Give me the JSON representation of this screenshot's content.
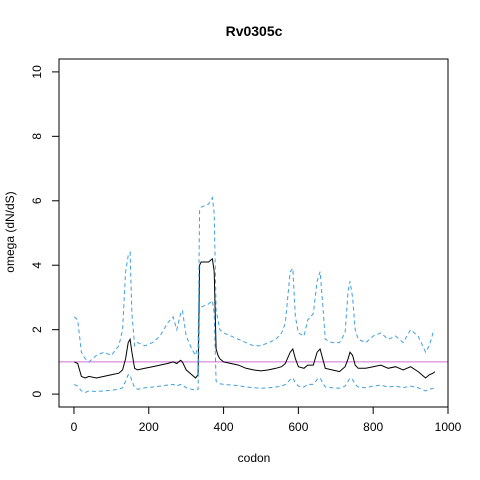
{
  "chart_data": {
    "type": "line",
    "title": "Rv0305c",
    "xlabel": "codon",
    "ylabel": "omega (dN/dS)",
    "xlim": [
      -40,
      1000
    ],
    "ylim": [
      -0.4,
      10.4
    ],
    "x_ticks": [
      "0",
      "200",
      "400",
      "600",
      "800",
      "1000"
    ],
    "y_ticks": [
      "0",
      "2",
      "4",
      "6",
      "8",
      "10"
    ],
    "reference_line": {
      "y": 1,
      "color": "#d070d0"
    },
    "series": [
      {
        "style": "solid",
        "color": "#000000",
        "x": [
          1,
          10,
          20,
          30,
          40,
          60,
          80,
          100,
          120,
          130,
          138,
          145,
          150,
          155,
          162,
          170,
          190,
          210,
          230,
          250,
          265,
          275,
          285,
          290,
          300,
          315,
          325,
          332,
          336,
          340,
          360,
          370,
          375,
          380,
          385,
          390,
          400,
          420,
          440,
          460,
          480,
          500,
          520,
          540,
          555,
          565,
          578,
          585,
          592,
          600,
          615,
          625,
          640,
          650,
          658,
          665,
          672,
          690,
          710,
          725,
          733,
          738,
          745,
          752,
          760,
          780,
          800,
          820,
          840,
          860,
          880,
          900,
          920,
          940,
          950,
          960,
          965
        ],
        "y": [
          1.0,
          0.95,
          0.55,
          0.5,
          0.55,
          0.5,
          0.55,
          0.6,
          0.65,
          0.75,
          1.1,
          1.6,
          1.7,
          1.3,
          0.8,
          0.75,
          0.8,
          0.85,
          0.9,
          0.95,
          1.0,
          0.95,
          1.05,
          1.0,
          0.75,
          0.6,
          0.5,
          0.6,
          4.0,
          4.1,
          4.1,
          4.2,
          3.8,
          1.4,
          1.2,
          1.1,
          1.0,
          0.95,
          0.9,
          0.8,
          0.75,
          0.72,
          0.75,
          0.8,
          0.85,
          0.95,
          1.3,
          1.4,
          1.1,
          0.85,
          0.8,
          0.9,
          0.9,
          1.3,
          1.4,
          1.1,
          0.8,
          0.75,
          0.7,
          0.85,
          1.1,
          1.3,
          1.2,
          0.9,
          0.8,
          0.8,
          0.85,
          0.9,
          0.8,
          0.85,
          0.75,
          0.85,
          0.7,
          0.5,
          0.6,
          0.65,
          0.7
        ]
      },
      {
        "style": "dashed",
        "color": "#3fa0db",
        "x": [
          1,
          10,
          20,
          30,
          40,
          60,
          80,
          100,
          120,
          130,
          138,
          145,
          150,
          155,
          162,
          170,
          190,
          210,
          230,
          250,
          265,
          275,
          285,
          290,
          300,
          315,
          325,
          332,
          336,
          340,
          360,
          370,
          375,
          380,
          385,
          390,
          400,
          420,
          440,
          460,
          480,
          500,
          520,
          540,
          555,
          565,
          578,
          585,
          592,
          600,
          615,
          625,
          640,
          650,
          658,
          665,
          672,
          690,
          710,
          725,
          733,
          738,
          745,
          752,
          760,
          780,
          800,
          820,
          840,
          860,
          880,
          900,
          920,
          940,
          950,
          960,
          965
        ],
        "y": [
          2.4,
          2.3,
          1.3,
          1.1,
          1.0,
          1.2,
          1.3,
          1.2,
          1.5,
          2.0,
          3.8,
          4.3,
          4.4,
          2.5,
          1.5,
          1.6,
          1.5,
          1.6,
          1.8,
          2.2,
          2.4,
          2.0,
          2.5,
          2.6,
          1.8,
          1.4,
          1.2,
          1.5,
          5.7,
          5.8,
          5.9,
          6.1,
          5.6,
          2.6,
          2.3,
          2.0,
          1.9,
          1.8,
          1.7,
          1.6,
          1.5,
          1.5,
          1.6,
          1.7,
          1.9,
          2.2,
          3.8,
          3.9,
          2.4,
          1.9,
          1.8,
          2.3,
          2.5,
          3.5,
          3.8,
          2.8,
          1.7,
          1.6,
          1.6,
          1.9,
          3.2,
          3.5,
          3.0,
          2.0,
          1.7,
          1.6,
          1.8,
          1.9,
          1.7,
          1.8,
          1.6,
          2.0,
          1.8,
          1.3,
          1.5,
          1.9,
          2.0
        ]
      },
      {
        "style": "dashed",
        "color": "#3fa0db",
        "x": [
          1,
          10,
          20,
          30,
          40,
          60,
          80,
          100,
          120,
          130,
          138,
          145,
          150,
          155,
          162,
          170,
          190,
          210,
          230,
          250,
          265,
          275,
          285,
          290,
          300,
          315,
          325,
          332,
          336,
          340,
          360,
          370,
          375,
          380,
          385,
          390,
          400,
          420,
          440,
          460,
          480,
          500,
          520,
          540,
          555,
          565,
          578,
          585,
          592,
          600,
          615,
          625,
          640,
          650,
          658,
          665,
          672,
          690,
          710,
          725,
          733,
          738,
          745,
          752,
          760,
          780,
          800,
          820,
          840,
          860,
          880,
          900,
          920,
          940,
          950,
          960,
          965
        ],
        "y": [
          0.3,
          0.25,
          0.1,
          0.05,
          0.1,
          0.08,
          0.1,
          0.12,
          0.15,
          0.2,
          0.4,
          0.6,
          0.6,
          0.4,
          0.2,
          0.15,
          0.2,
          0.22,
          0.25,
          0.28,
          0.3,
          0.25,
          0.3,
          0.28,
          0.2,
          0.15,
          0.12,
          0.15,
          2.6,
          2.7,
          2.8,
          2.9,
          2.5,
          0.4,
          0.35,
          0.32,
          0.3,
          0.28,
          0.26,
          0.22,
          0.2,
          0.18,
          0.2,
          0.22,
          0.25,
          0.3,
          0.45,
          0.5,
          0.35,
          0.25,
          0.22,
          0.3,
          0.3,
          0.45,
          0.5,
          0.35,
          0.22,
          0.2,
          0.18,
          0.25,
          0.4,
          0.5,
          0.45,
          0.3,
          0.22,
          0.2,
          0.25,
          0.28,
          0.22,
          0.25,
          0.2,
          0.25,
          0.2,
          0.1,
          0.15,
          0.18,
          0.2
        ]
      }
    ]
  }
}
